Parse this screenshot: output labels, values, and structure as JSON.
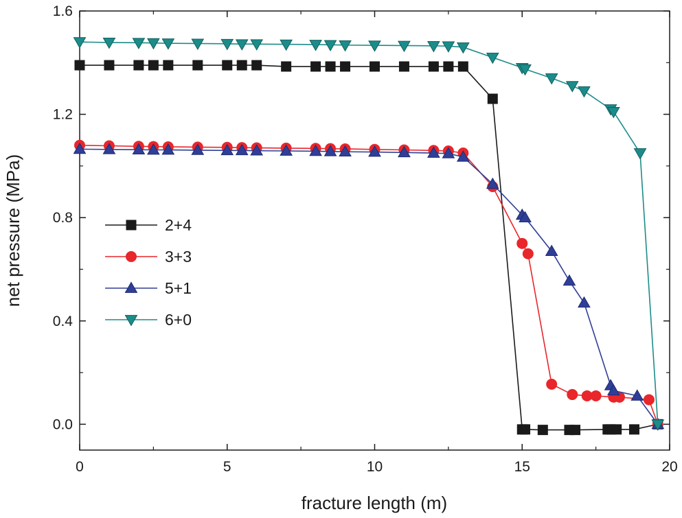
{
  "chart_data": {
    "type": "line",
    "title": "",
    "xlabel": "fracture length (m)",
    "ylabel": "net pressure (MPa)",
    "xlim": [
      0,
      20
    ],
    "ylim": [
      -0.1,
      1.6
    ],
    "xticks": [
      0,
      5,
      10,
      15,
      20
    ],
    "xtick_labels": [
      "0",
      "5",
      "10",
      "15",
      "20"
    ],
    "yticks": [
      0.0,
      0.4,
      0.8,
      1.2,
      1.6
    ],
    "ytick_labels": [
      "0.0",
      "0.4",
      "0.8",
      "1.2",
      "1.6"
    ],
    "grid": false,
    "legend_position": "middle-left",
    "series": [
      {
        "name": "2+4",
        "color": "#1a1a1a",
        "marker": "square",
        "x": [
          0,
          1,
          2,
          2.5,
          3,
          4,
          5,
          5.5,
          6,
          7,
          8,
          8.5,
          9,
          10,
          11,
          12,
          12.5,
          13,
          14,
          15,
          15.1,
          15.7,
          16.6,
          16.8,
          17.9,
          18.0,
          18.2,
          18.8,
          19.6
        ],
        "y": [
          1.39,
          1.39,
          1.39,
          1.39,
          1.39,
          1.39,
          1.39,
          1.39,
          1.39,
          1.385,
          1.385,
          1.385,
          1.385,
          1.385,
          1.385,
          1.385,
          1.385,
          1.385,
          1.26,
          -0.02,
          -0.02,
          -0.022,
          -0.022,
          -0.022,
          -0.02,
          -0.02,
          -0.02,
          -0.02,
          0.0
        ]
      },
      {
        "name": "3+3",
        "color": "#e8262b",
        "marker": "circle",
        "x": [
          0,
          1,
          2,
          2.5,
          3,
          4,
          5,
          5.5,
          6,
          7,
          8,
          8.5,
          9,
          10,
          11,
          12,
          12.5,
          13,
          14,
          15,
          15.2,
          16,
          16.7,
          17.2,
          17.5,
          18.1,
          18.3,
          19.3,
          19.6
        ],
        "y": [
          1.08,
          1.078,
          1.076,
          1.075,
          1.074,
          1.073,
          1.072,
          1.071,
          1.07,
          1.069,
          1.068,
          1.067,
          1.066,
          1.064,
          1.062,
          1.06,
          1.058,
          1.05,
          0.92,
          0.7,
          0.66,
          0.155,
          0.115,
          0.11,
          0.11,
          0.105,
          0.105,
          0.095,
          0.0
        ]
      },
      {
        "name": "5+1",
        "color": "#2f3f97",
        "marker": "triangle-up",
        "x": [
          0,
          1,
          2,
          2.5,
          3,
          4,
          5,
          5.5,
          6,
          7,
          8,
          8.5,
          9,
          10,
          11,
          12,
          12.5,
          13,
          14,
          15,
          15.1,
          16,
          16.6,
          17.1,
          18,
          18.1,
          18.9,
          19.6
        ],
        "y": [
          1.065,
          1.064,
          1.063,
          1.062,
          1.062,
          1.061,
          1.06,
          1.06,
          1.059,
          1.058,
          1.057,
          1.056,
          1.055,
          1.054,
          1.052,
          1.05,
          1.048,
          1.035,
          0.93,
          0.81,
          0.8,
          0.67,
          0.555,
          0.47,
          0.15,
          0.13,
          0.11,
          0.0
        ]
      },
      {
        "name": "6+0",
        "color": "#1b8c8a",
        "marker": "triangle-down",
        "x": [
          0,
          1,
          2,
          2.5,
          3,
          4,
          5,
          5.5,
          6,
          7,
          8,
          8.5,
          9,
          10,
          11,
          12,
          12.5,
          13,
          14,
          15,
          15.1,
          16,
          16.7,
          17.1,
          18,
          18.1,
          19,
          19.6
        ],
        "y": [
          1.48,
          1.478,
          1.477,
          1.476,
          1.475,
          1.474,
          1.473,
          1.472,
          1.472,
          1.471,
          1.47,
          1.469,
          1.468,
          1.467,
          1.466,
          1.465,
          1.464,
          1.46,
          1.42,
          1.38,
          1.375,
          1.34,
          1.31,
          1.29,
          1.22,
          1.21,
          1.05,
          0.0
        ]
      }
    ]
  }
}
